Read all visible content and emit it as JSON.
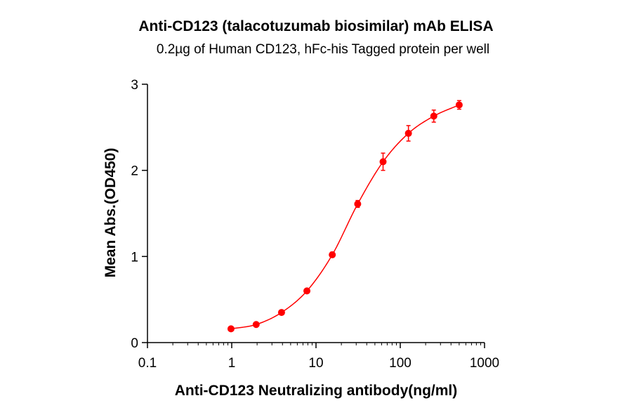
{
  "chart_data": {
    "type": "scatter",
    "title": "Anti-CD123 (talacotuzumab biosimilar) mAb ELISA",
    "subtitle": "0.2µg of Human CD123, hFc-his Tagged protein per well",
    "xlabel": "Anti-CD123 Neutralizing antibody(ng/ml)",
    "ylabel": "Mean Abs.(OD450)",
    "x_scale": "log",
    "xlim": [
      0.1,
      1000
    ],
    "ylim": [
      0,
      3
    ],
    "x_ticks": [
      0.1,
      1,
      10,
      100,
      1000
    ],
    "x_tick_labels": [
      "0.1",
      "1",
      "10",
      "100",
      "1000"
    ],
    "y_ticks": [
      0,
      1,
      2,
      3
    ],
    "y_tick_labels": [
      "0",
      "1",
      "2",
      "3"
    ],
    "grid": false,
    "series_color": "#ff0000",
    "series": [
      {
        "x": [
          0.98,
          1.95,
          3.9,
          7.8,
          15.6,
          31.25,
          62.5,
          125,
          250,
          500
        ],
        "y": [
          0.16,
          0.21,
          0.35,
          0.6,
          1.02,
          1.61,
          2.1,
          2.43,
          2.63,
          2.76
        ],
        "error": [
          0.01,
          0.01,
          0.02,
          0.02,
          0.03,
          0.04,
          0.1,
          0.09,
          0.07,
          0.05
        ],
        "fit": "4PL"
      }
    ]
  }
}
